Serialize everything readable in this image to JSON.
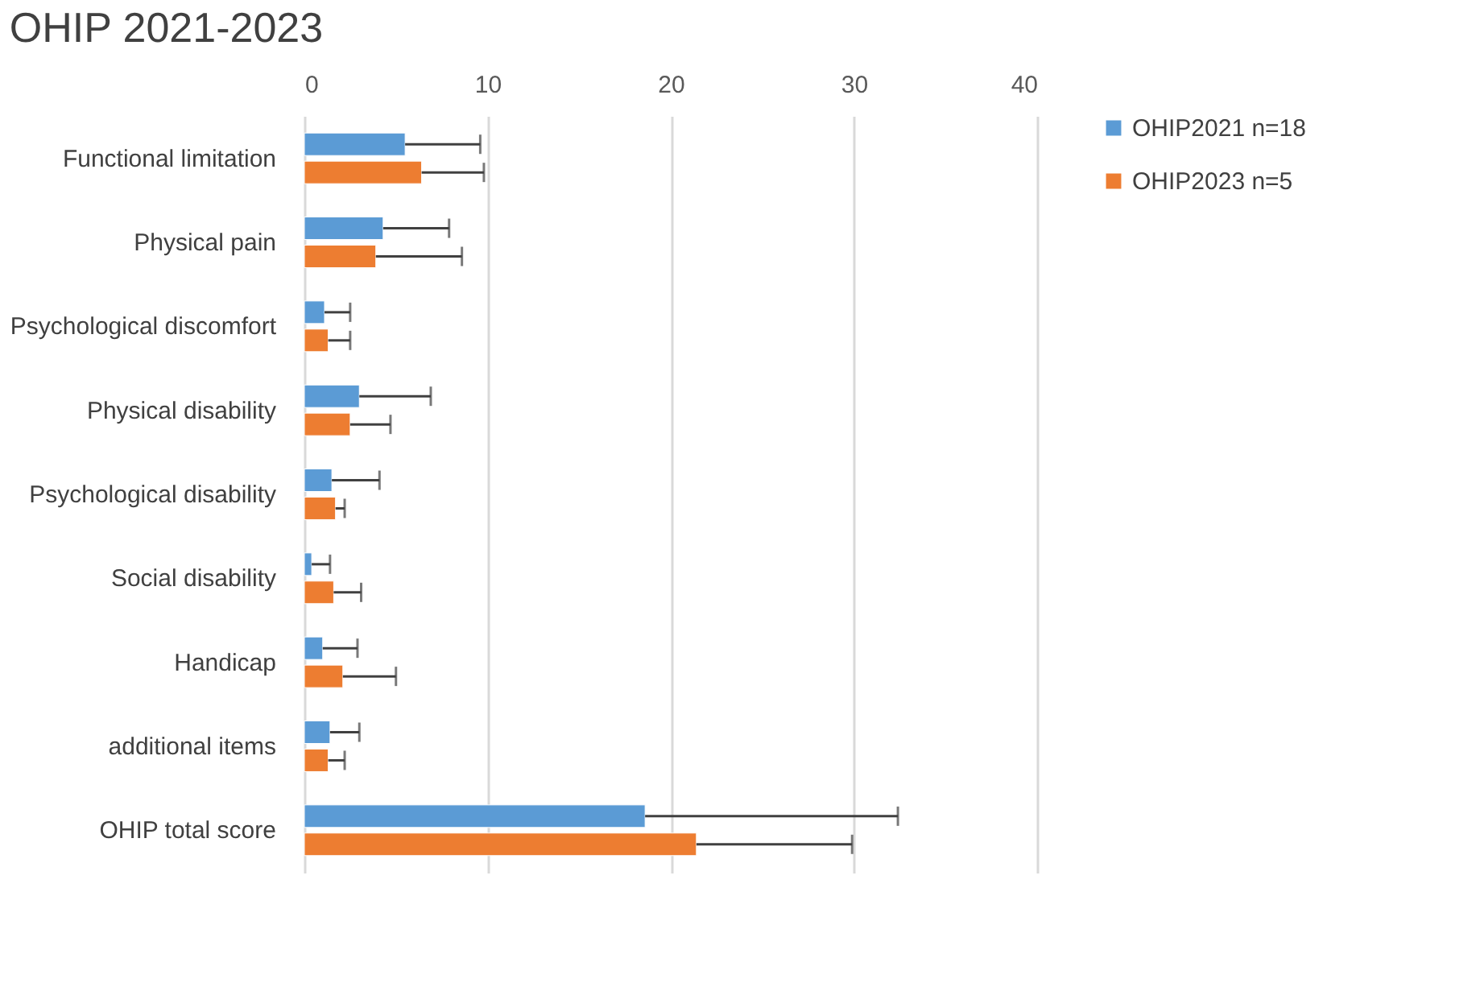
{
  "chart_data": {
    "type": "bar",
    "orientation": "horizontal",
    "title": "OHIP 2021-2023",
    "categories": [
      "Functional limitation",
      "Physical pain",
      "Psychological discomfort",
      "Physical disability",
      "Psychological disability",
      "Social disability",
      "Handicap",
      "additional items",
      "OHIP total score"
    ],
    "series": [
      {
        "name": "OHIP2021 n=18",
        "color": "#5b9bd5",
        "values": [
          5.5,
          4.3,
          1.1,
          3.0,
          1.5,
          0.4,
          1.0,
          1.4,
          18.6
        ],
        "errors": [
          [
            5.5,
            9.6
          ],
          [
            4.3,
            7.9
          ],
          [
            1.1,
            2.5
          ],
          [
            3.0,
            6.9
          ],
          [
            1.5,
            4.1
          ],
          [
            0.4,
            1.4
          ],
          [
            1.0,
            2.9
          ],
          [
            1.4,
            3.0
          ],
          [
            18.6,
            32.4
          ]
        ]
      },
      {
        "name": "OHIP2023 n=5",
        "color": "#ed7d31",
        "values": [
          6.4,
          3.9,
          1.3,
          2.5,
          1.7,
          1.6,
          2.1,
          1.3,
          21.4
        ],
        "errors": [
          [
            6.4,
            9.8
          ],
          [
            3.9,
            8.6
          ],
          [
            1.3,
            2.5
          ],
          [
            2.5,
            4.7
          ],
          [
            1.7,
            2.2
          ],
          [
            1.6,
            3.1
          ],
          [
            2.1,
            5.0
          ],
          [
            1.3,
            2.2
          ],
          [
            21.4,
            29.9
          ]
        ]
      }
    ],
    "xlim": [
      0,
      40
    ],
    "xticks": [
      0,
      10,
      20,
      30,
      40
    ],
    "grid": "x",
    "legend": "right"
  }
}
